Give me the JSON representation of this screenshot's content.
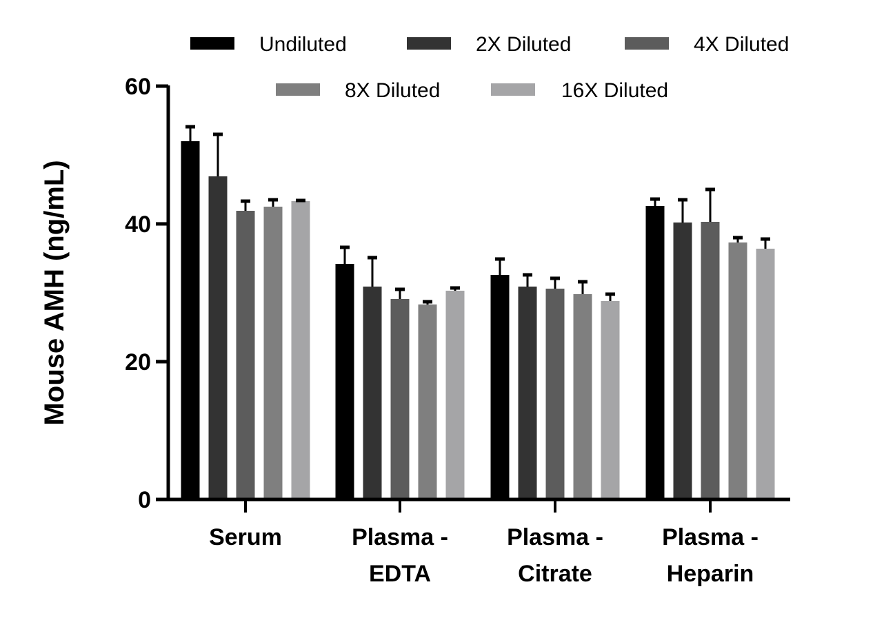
{
  "chart_data": {
    "type": "bar",
    "title": "",
    "xlabel": "",
    "ylabel": "Mouse AMH (ng/mL)",
    "ylim": [
      0,
      60
    ],
    "yticks": [
      "0",
      "20",
      "40",
      "60"
    ],
    "categories": [
      [
        "Serum"
      ],
      [
        "Plasma -",
        "EDTA"
      ],
      [
        "Plasma -",
        "Citrate"
      ],
      [
        "Plasma -",
        "Heparin"
      ]
    ],
    "legend_position": "top",
    "grid": false,
    "series": [
      {
        "name": "Undiluted",
        "color": "#000000",
        "values": [
          52.0,
          34.2,
          32.6,
          42.6
        ],
        "errors": [
          2.2,
          2.5,
          2.4,
          1.1
        ]
      },
      {
        "name": "2X Diluted",
        "color": "#333333",
        "values": [
          46.9,
          30.9,
          30.9,
          40.2
        ],
        "errors": [
          6.2,
          4.3,
          1.8,
          3.4
        ]
      },
      {
        "name": "4X Diluted",
        "color": "#5c5c5c",
        "values": [
          41.9,
          29.1,
          30.6,
          40.3
        ],
        "errors": [
          1.5,
          1.5,
          1.6,
          4.8
        ]
      },
      {
        "name": "8X Diluted",
        "color": "#7f7f7f",
        "values": [
          42.5,
          28.3,
          29.8,
          37.3
        ],
        "errors": [
          1.1,
          0.5,
          1.9,
          0.8
        ]
      },
      {
        "name": "16X Diluted",
        "color": "#a5a5a7",
        "values": [
          43.3,
          30.3,
          28.8,
          36.4
        ],
        "errors": [
          0.2,
          0.5,
          1.1,
          1.5
        ]
      }
    ]
  }
}
